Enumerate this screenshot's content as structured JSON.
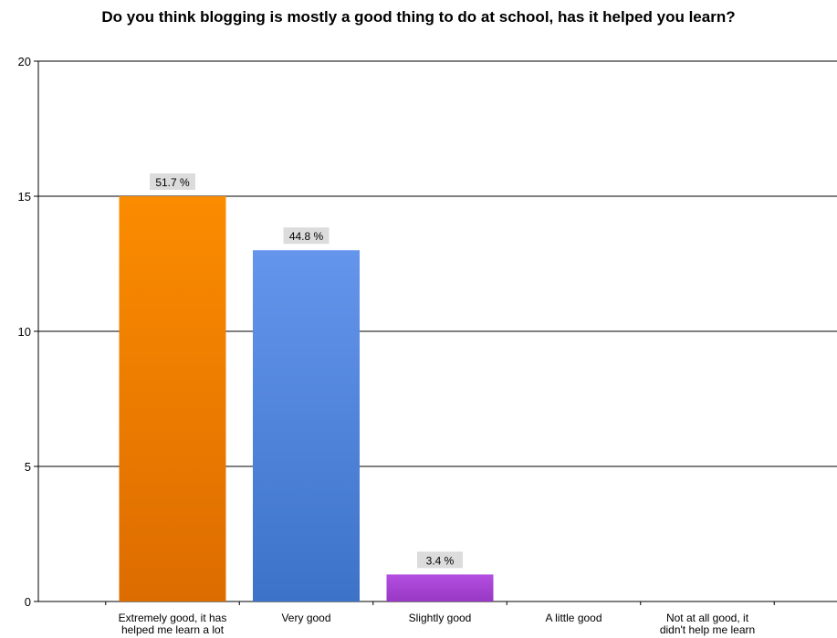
{
  "chart_data": {
    "type": "bar",
    "title": "Do you think blogging is mostly a good thing to do at school, has it helped you learn?",
    "categories": [
      [
        "Extremely good, it has",
        "helped me learn a lot"
      ],
      [
        "Very good"
      ],
      [
        "Slightly good"
      ],
      [
        "A little good"
      ],
      [
        "Not at all good, it",
        "didn't help me learn"
      ]
    ],
    "values": [
      15,
      13,
      1,
      0,
      0
    ],
    "data_labels": [
      "51.7 %",
      "44.8 %",
      "3.4 %",
      "",
      ""
    ],
    "colors": [
      {
        "top": "#fb8c00",
        "bottom": "#dd6c00"
      },
      {
        "top": "#6495ec",
        "bottom": "#3c73c8"
      },
      {
        "top": "#b44fe1",
        "bottom": "#9838c4"
      },
      {
        "top": "#cccccc",
        "bottom": "#aaaaaa"
      },
      {
        "top": "#cccccc",
        "bottom": "#aaaaaa"
      }
    ],
    "ylim": [
      0,
      20
    ],
    "yticks": [
      0,
      5,
      10,
      15,
      20
    ],
    "xlabel": "",
    "ylabel": "",
    "grid": true
  }
}
